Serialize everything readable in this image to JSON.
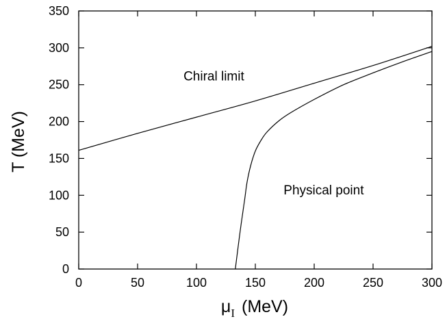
{
  "chart_data": {
    "type": "line",
    "title": "",
    "xlabel": {
      "symbol": "μ",
      "subscript": "I",
      "unit": "(MeV)"
    },
    "ylabel": "T (MeV)",
    "xlim": [
      0,
      300
    ],
    "ylim": [
      0,
      350
    ],
    "xticks": [
      0,
      50,
      100,
      150,
      200,
      250,
      300
    ],
    "yticks": [
      0,
      50,
      100,
      150,
      200,
      250,
      300,
      350
    ],
    "grid": false,
    "legend": "none",
    "annotations": [
      {
        "text": "Chiral limit",
        "x": 89,
        "y": 256
      },
      {
        "text": "Physical point",
        "x": 174,
        "y": 101
      }
    ],
    "series": [
      {
        "name": "Chiral limit",
        "color": "#000000",
        "x": [
          0,
          50,
          100,
          150,
          200,
          250,
          300
        ],
        "y": [
          161,
          184,
          206,
          228,
          252,
          276,
          302
        ]
      },
      {
        "name": "Physical point",
        "color": "#000000",
        "x": [
          133,
          137,
          141,
          143,
          146,
          150,
          155,
          160,
          170,
          180,
          200,
          225,
          250,
          275,
          300
        ],
        "y": [
          0,
          50,
          95,
          118,
          140,
          160,
          175,
          186,
          201,
          212,
          230,
          250,
          266,
          281,
          295
        ]
      }
    ]
  }
}
